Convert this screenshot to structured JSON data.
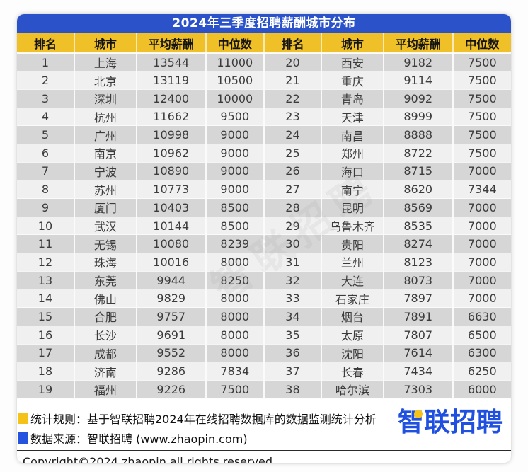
{
  "title": "2024年三季度招聘薪酬城市分布",
  "chart_data": {
    "type": "table",
    "title": "2024年三季度招聘薪酬城市分布",
    "columns": [
      "排名",
      "城市",
      "平均薪酬",
      "中位数",
      "排名",
      "城市",
      "平均薪酬",
      "中位数"
    ],
    "rows": [
      [
        "1",
        "上海",
        "13544",
        "11000",
        "20",
        "西安",
        "9182",
        "7500"
      ],
      [
        "2",
        "北京",
        "13119",
        "10500",
        "21",
        "重庆",
        "9114",
        "7500"
      ],
      [
        "3",
        "深圳",
        "12400",
        "10000",
        "22",
        "青岛",
        "9092",
        "7500"
      ],
      [
        "4",
        "杭州",
        "11662",
        "9500",
        "23",
        "天津",
        "8999",
        "7500"
      ],
      [
        "5",
        "广州",
        "10998",
        "9000",
        "24",
        "南昌",
        "8888",
        "7500"
      ],
      [
        "6",
        "南京",
        "10962",
        "9000",
        "25",
        "郑州",
        "8722",
        "7500"
      ],
      [
        "7",
        "宁波",
        "10890",
        "9000",
        "26",
        "海口",
        "8715",
        "7000"
      ],
      [
        "8",
        "苏州",
        "10773",
        "9000",
        "27",
        "南宁",
        "8620",
        "7344"
      ],
      [
        "9",
        "厦门",
        "10403",
        "8500",
        "28",
        "昆明",
        "8569",
        "7000"
      ],
      [
        "10",
        "武汉",
        "10144",
        "8500",
        "29",
        "乌鲁木齐",
        "8535",
        "7000"
      ],
      [
        "11",
        "无锡",
        "10080",
        "8239",
        "30",
        "贵阳",
        "8274",
        "7000"
      ],
      [
        "12",
        "珠海",
        "10016",
        "8000",
        "31",
        "兰州",
        "8123",
        "7000"
      ],
      [
        "13",
        "东莞",
        "9944",
        "8250",
        "32",
        "大连",
        "8073",
        "7000"
      ],
      [
        "14",
        "佛山",
        "9829",
        "8000",
        "33",
        "石家庄",
        "7897",
        "7000"
      ],
      [
        "15",
        "合肥",
        "9757",
        "8000",
        "34",
        "烟台",
        "7891",
        "6630"
      ],
      [
        "16",
        "长沙",
        "9691",
        "8000",
        "35",
        "太原",
        "7807",
        "6500"
      ],
      [
        "17",
        "成都",
        "9552",
        "8000",
        "36",
        "沈阳",
        "7614",
        "6300"
      ],
      [
        "18",
        "济南",
        "9286",
        "7834",
        "37",
        "长春",
        "7434",
        "6250"
      ],
      [
        "19",
        "福州",
        "9226",
        "7500",
        "38",
        "哈尔滨",
        "7303",
        "6000"
      ]
    ],
    "legend": "off",
    "grid": "off"
  },
  "watermark": {
    "text": "智联招聘"
  },
  "footer": {
    "note1": "统计规则：基于智联招聘2024年在线招聘数据库的数据监测统计分析",
    "note2": "数据来源：智联招聘 (www.zhaopin.com)",
    "logo": "智联招聘",
    "copyright": "Copyright©2024 zhaopin all rights reserved"
  },
  "colors": {
    "title_bar_blue": "#2B52C9",
    "header_yellow": "#F0C028",
    "row_gray": "#D6D6D6",
    "row_light": "#F0F0F0",
    "logo_blue": "#2050DF",
    "bullet_yellow": "#F5C318",
    "bullet_blue": "#2453E0"
  }
}
